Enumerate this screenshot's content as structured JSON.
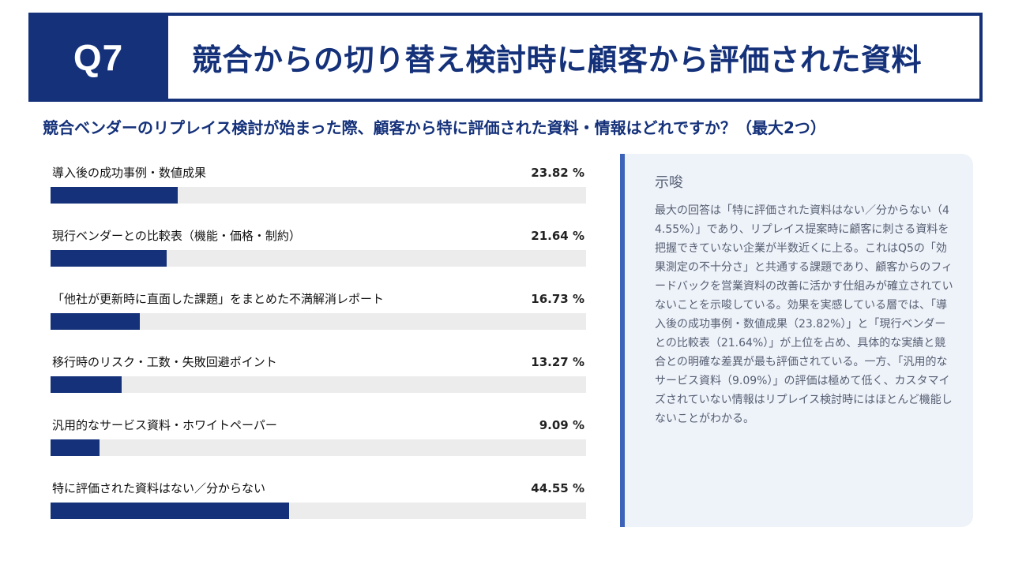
{
  "header": {
    "q_label": "Q7",
    "title": "競合からの切り替え検討時に顧客から評価された資料"
  },
  "question": "競合ベンダーのリプレイス検討が始まった際、顧客から特に評価された資料・情報はどれですか？（最大2つ）",
  "chart_data": {
    "type": "bar",
    "orientation": "horizontal",
    "categories": [
      "導入後の成功事例・数値成果",
      "現行ベンダーとの比較表（機能・価格・制約）",
      "「他社が更新時に直面した課題」をまとめた不満解消レポート",
      "移行時のリスク・工数・失敗回避ポイント",
      "汎用的なサービス資料・ホワイトペーパー",
      "特に評価された資料はない／分からない"
    ],
    "values": [
      23.82,
      21.64,
      16.73,
      13.27,
      9.09,
      44.55
    ],
    "value_labels": [
      "23.82 %",
      "21.64 %",
      "16.73 %",
      "13.27 %",
      "9.09 %",
      "44.55 %"
    ],
    "xlim": [
      0,
      100
    ],
    "bar_color": "#14317a",
    "track_color": "#ececec"
  },
  "insight": {
    "title": "示唆",
    "body": "最大の回答は「特に評価された資料はない／分からない（44.55%）」であり、リプレイス提案時に顧客に刺さる資料を把握できていない企業が半数近くに上る。これはQ5の「効果測定の不十分さ」と共通する課題であり、顧客からのフィードバックを営業資料の改善に活かす仕組みが確立されていないことを示唆している。効果を実感している層では、「導入後の成功事例・数値成果（23.82%）」と「現行ベンダーとの比較表（21.64%）」が上位を占め、具体的な実績と競合との明確な差異が最も評価されている。一方、「汎用的なサービス資料（9.09%）」の評価は極めて低く、カスタマイズされていない情報はリプレイス検討時にはほとんど機能しないことがわかる。"
  },
  "colors": {
    "navy": "#14317a",
    "accent": "#3d63b8",
    "panel_bg": "#eef2f9"
  }
}
